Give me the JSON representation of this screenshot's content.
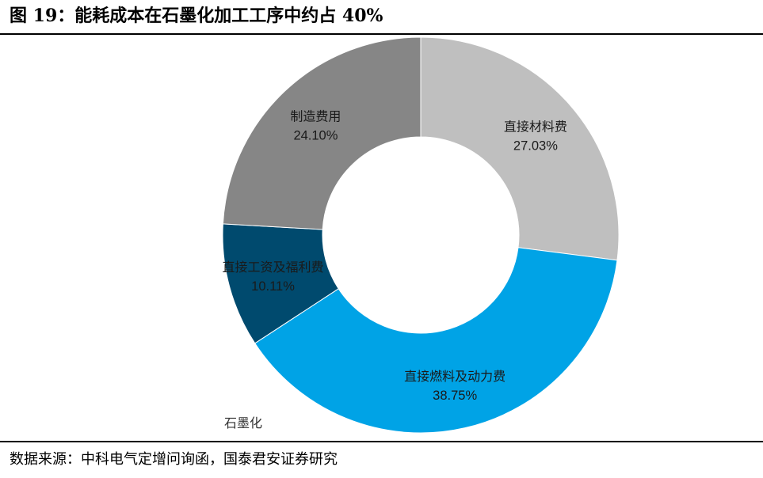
{
  "figure_title": "图 19：能耗成本在石墨化加工工序中约占 40%",
  "source_note": "数据来源：中科电气定增问询函，国泰君安证券研究",
  "chart_data": {
    "type": "pie",
    "style": "donut",
    "category_label": "石墨化",
    "slices": [
      {
        "name": "直接材料费",
        "value": 27.03,
        "label": "27.03%",
        "color": "#bfbfbf",
        "label_color": "#1a1a1a"
      },
      {
        "name": "直接燃料及动力费",
        "value": 38.75,
        "label": "38.75%",
        "color": "#00a3e6",
        "label_color": "#1a1a1a"
      },
      {
        "name": "直接工资及福利费",
        "value": 10.11,
        "label": "10.11%",
        "color": "#004a6e",
        "label_color": "#1a1a1a"
      },
      {
        "name": "制造费用",
        "value": 24.1,
        "label": "24.10%",
        "color": "#868686",
        "label_color": "#1a1a1a"
      }
    ],
    "start_angle": "12 o'clock",
    "direction": "clockwise",
    "legend": "none"
  }
}
